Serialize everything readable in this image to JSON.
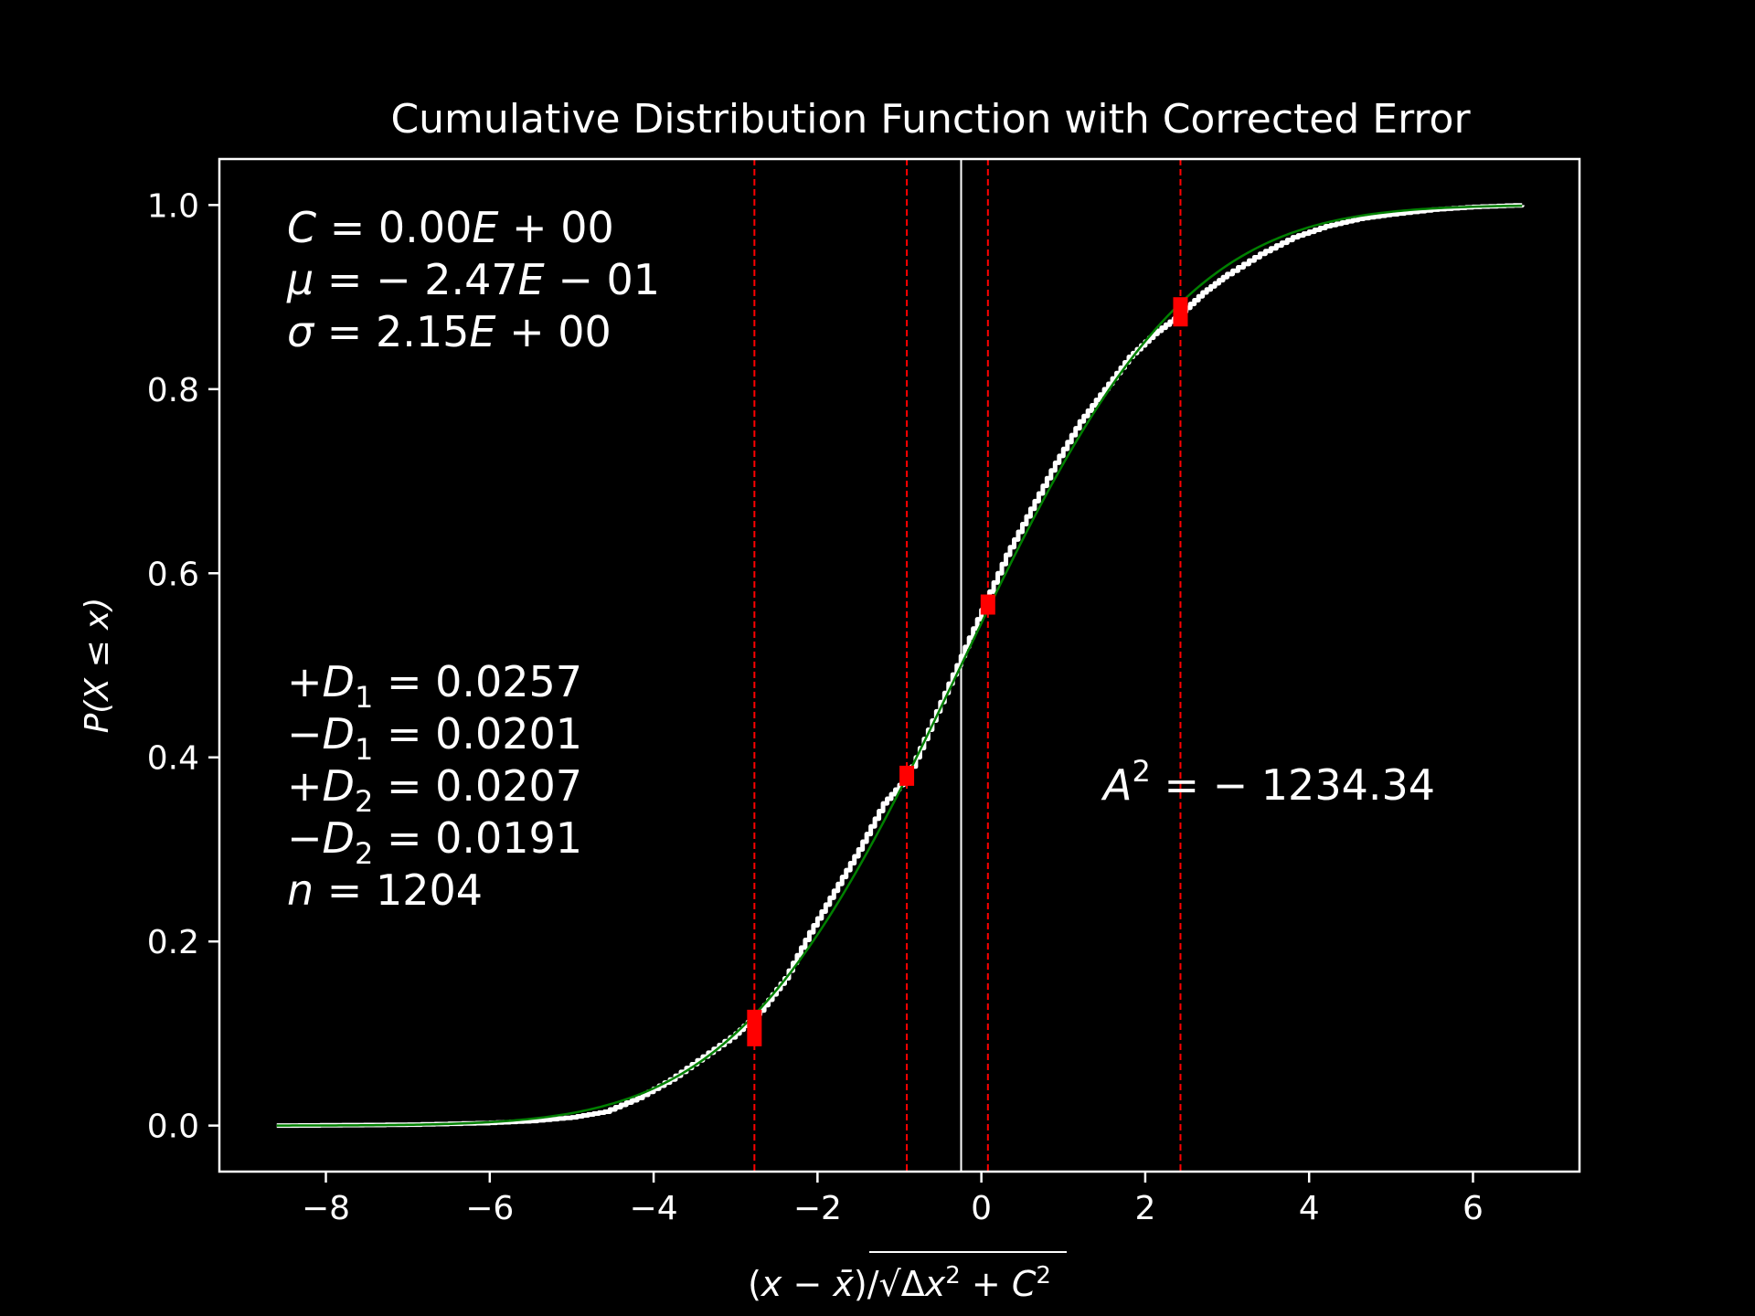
{
  "chart_data": {
    "type": "line",
    "title": "Cumulative Distribution Function with Corrected Error",
    "xlabel_parts": {
      "open": "(",
      "x": "x",
      "minus": " − ",
      "xbar": "x̄",
      "close": ")/√",
      "delta": "Δ",
      "x2": "x",
      "sup1": "2",
      "plus": " + ",
      "c": "C",
      "sup2": "2"
    },
    "ylabel": "P(X ≤ x)",
    "xlim": [
      -9.3,
      7.3
    ],
    "ylim": [
      -0.05,
      1.05
    ],
    "xticks": [
      {
        "value": -8,
        "label": "−8"
      },
      {
        "value": -6,
        "label": "−6"
      },
      {
        "value": -4,
        "label": "−4"
      },
      {
        "value": -2,
        "label": "−2"
      },
      {
        "value": 0,
        "label": "0"
      },
      {
        "value": 2,
        "label": "2"
      },
      {
        "value": 4,
        "label": "4"
      },
      {
        "value": 6,
        "label": "6"
      }
    ],
    "yticks": [
      {
        "value": 0.0,
        "label": "0.0"
      },
      {
        "value": 0.2,
        "label": "0.2"
      },
      {
        "value": 0.4,
        "label": "0.4"
      },
      {
        "value": 0.6,
        "label": "0.6"
      },
      {
        "value": 0.8,
        "label": "0.8"
      },
      {
        "value": 1.0,
        "label": "1.0"
      }
    ],
    "fit_params": {
      "mu": -0.247,
      "sigma": 2.15
    },
    "empirical_cdf": {
      "x": [
        -8.6,
        -7.0,
        -6.0,
        -5.5,
        -5.0,
        -4.6,
        -4.2,
        -3.8,
        -3.4,
        -3.0,
        -2.7,
        -2.4,
        -2.1,
        -1.8,
        -1.5,
        -1.2,
        -0.9,
        -0.6,
        -0.3,
        0.0,
        0.3,
        0.6,
        0.9,
        1.2,
        1.5,
        1.8,
        2.1,
        2.4,
        2.7,
        3.0,
        3.4,
        3.8,
        4.2,
        4.6,
        5.0,
        5.5,
        6.0,
        6.6
      ],
      "y": [
        0.0,
        0.001,
        0.003,
        0.005,
        0.009,
        0.015,
        0.03,
        0.05,
        0.075,
        0.1,
        0.125,
        0.16,
        0.21,
        0.255,
        0.3,
        0.35,
        0.38,
        0.44,
        0.5,
        0.56,
        0.62,
        0.67,
        0.72,
        0.765,
        0.8,
        0.835,
        0.86,
        0.88,
        0.905,
        0.925,
        0.947,
        0.965,
        0.977,
        0.985,
        0.99,
        0.995,
        0.998,
        1.0
      ]
    },
    "colors": {
      "empirical": "#ffffff",
      "fit": "#008000",
      "markers": "#ff0000",
      "median_line": "#ffffff",
      "axes": "#ffffff",
      "background": "#000000"
    },
    "red_lines": [
      {
        "x": -2.77,
        "y": 0.106
      },
      {
        "x": -0.91,
        "y": 0.38
      },
      {
        "x": 0.08,
        "y": 0.566
      },
      {
        "x": 2.43,
        "y": 0.884
      }
    ],
    "center_line_x": -0.247,
    "annotations": {
      "params": {
        "c_label": "C",
        "c_value": " = 0.00",
        "c_e": "E",
        "c_exp": " + 00",
        "mu_label": "μ",
        "mu_value": " =  − 2.47",
        "mu_e": "E",
        "mu_exp": " − 01",
        "sigma_label": "σ",
        "sigma_value": " = 2.15",
        "sigma_e": "E",
        "sigma_exp": " + 00"
      },
      "ks": {
        "d1p_sign": "+",
        "d1p_d": "D",
        "d1p_sub": "1",
        "d1p_value": " = 0.0257",
        "d1m_sign": "−",
        "d1m_d": "D",
        "d1m_sub": "1",
        "d1m_value": " = 0.0201",
        "d2p_sign": "+",
        "d2p_d": "D",
        "d2p_sub": "2",
        "d2p_value": " = 0.0207",
        "d2m_sign": "−",
        "d2m_d": "D",
        "d2m_sub": "2",
        "d2m_value": " = 0.0191",
        "n_label": "n",
        "n_value": " = 1204"
      },
      "ad": {
        "a_label": "A",
        "a_sup": "2",
        "a_value": " =  − 1234.34"
      }
    }
  }
}
